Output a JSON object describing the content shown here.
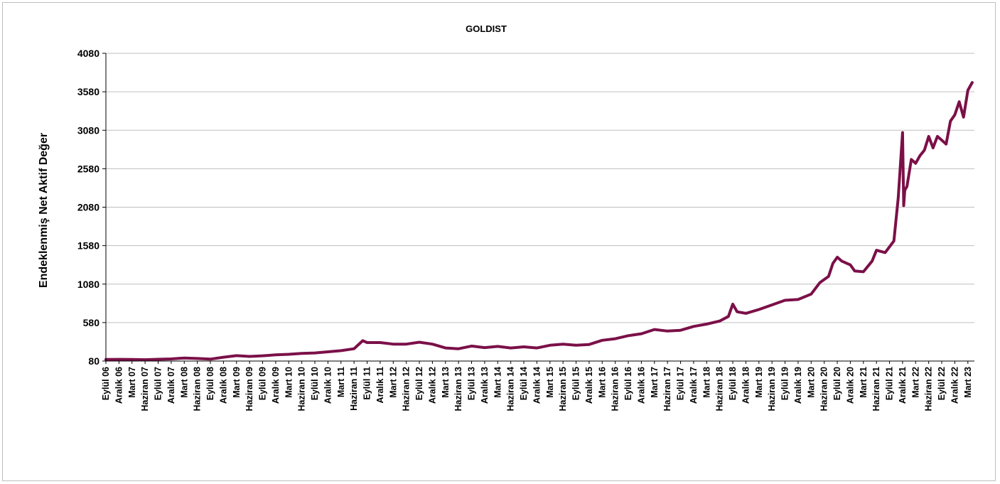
{
  "chart_data": {
    "type": "line",
    "title": "GOLDIST",
    "ylabel": "Endeklenmiş Net Aktif Değer",
    "xlabel": "",
    "ylim": [
      80,
      4080
    ],
    "yticks": [
      80,
      580,
      1080,
      1580,
      2080,
      2580,
      3080,
      3580,
      4080
    ],
    "x_tick_labels": [
      "Eylül 06",
      "Aralık 06",
      "Mart 07",
      "Haziran 07",
      "Eylül 07",
      "Aralık 07",
      "Mart 08",
      "Haziran 08",
      "Eylül 08",
      "Aralık 08",
      "Mart 09",
      "Haziran 09",
      "Eylül 09",
      "Aralık 09",
      "Mart 10",
      "Haziran 10",
      "Eylül 10",
      "Aralık 10",
      "Mart 11",
      "Haziran 11",
      "Eylül 11",
      "Aralık 11",
      "Mart 12",
      "Haziran 12",
      "Eylül 12",
      "Aralık 12",
      "Mart 13",
      "Haziran 13",
      "Eylül 13",
      "Aralık 13",
      "Mart 14",
      "Haziran 14",
      "Eylül 14",
      "Aralık 14",
      "Mart 15",
      "Haziran 15",
      "Eylül 15",
      "Aralık 15",
      "Mart 16",
      "Haziran 16",
      "Eylül 16",
      "Aralık 16",
      "Mart 17",
      "Haziran 17",
      "Eylül 17",
      "Aralık 17",
      "Mart 18",
      "Haziran 18",
      "Eylül 18",
      "Aralık 18",
      "Mart 19",
      "Haziran 19",
      "Eylül 19",
      "Aralık 19",
      "Mart 20",
      "Haziran 20",
      "Eylül 20",
      "Aralık 20",
      "Mart 21",
      "Haziran 21",
      "Eylül 21",
      "Aralık 21",
      "Mart 22",
      "Haziran 22",
      "Eylül 22",
      "Aralık 22",
      "Mart 23"
    ],
    "series": [
      {
        "color": "#7b1048",
        "x": [
          "2006-09",
          "2006-12",
          "2007-03",
          "2007-06",
          "2007-09",
          "2007-12",
          "2008-03",
          "2008-06",
          "2008-09",
          "2008-12",
          "2009-03",
          "2009-06",
          "2009-09",
          "2009-12",
          "2010-03",
          "2010-06",
          "2010-09",
          "2010-12",
          "2011-03",
          "2011-06",
          "2011-08",
          "2011-09",
          "2011-12",
          "2012-03",
          "2012-06",
          "2012-09",
          "2012-12",
          "2013-03",
          "2013-06",
          "2013-09",
          "2013-12",
          "2014-03",
          "2014-06",
          "2014-09",
          "2014-12",
          "2015-03",
          "2015-06",
          "2015-09",
          "2015-12",
          "2016-03",
          "2016-06",
          "2016-09",
          "2016-12",
          "2017-03",
          "2017-06",
          "2017-09",
          "2017-12",
          "2018-03",
          "2018-06",
          "2018-08",
          "2018-09",
          "2018-10",
          "2018-12",
          "2019-03",
          "2019-06",
          "2019-09",
          "2019-12",
          "2020-03",
          "2020-05",
          "2020-07",
          "2020-08",
          "2020-09",
          "2020-10",
          "2020-12",
          "2021-01",
          "2021-03",
          "2021-05",
          "2021-06",
          "2021-08",
          "2021-10",
          "2021-11",
          "2021-12",
          "2021-12",
          "2021-12",
          "2022-01",
          "2022-02",
          "2022-03",
          "2022-04",
          "2022-05",
          "2022-06",
          "2022-07",
          "2022-08",
          "2022-09",
          "2022-10",
          "2022-11",
          "2022-12",
          "2023-01",
          "2023-02",
          "2023-03",
          "2023-04"
        ],
        "y": [
          100,
          102,
          100,
          98,
          103,
          108,
          120,
          113,
          105,
          130,
          150,
          140,
          148,
          160,
          168,
          180,
          185,
          200,
          215,
          240,
          345,
          320,
          320,
          300,
          300,
          325,
          300,
          250,
          240,
          275,
          255,
          270,
          250,
          265,
          250,
          285,
          300,
          285,
          295,
          350,
          370,
          410,
          435,
          490,
          470,
          480,
          530,
          560,
          600,
          660,
          820,
          720,
          700,
          750,
          810,
          870,
          880,
          950,
          1100,
          1180,
          1350,
          1430,
          1380,
          1330,
          1250,
          1240,
          1380,
          1520,
          1490,
          1640,
          2200,
          3050,
          2100,
          2300,
          2350,
          2700,
          2650,
          2750,
          2820,
          3000,
          2850,
          3000,
          2950,
          2900,
          3200,
          3280,
          3450,
          3250,
          3600,
          3700
        ]
      }
    ]
  }
}
